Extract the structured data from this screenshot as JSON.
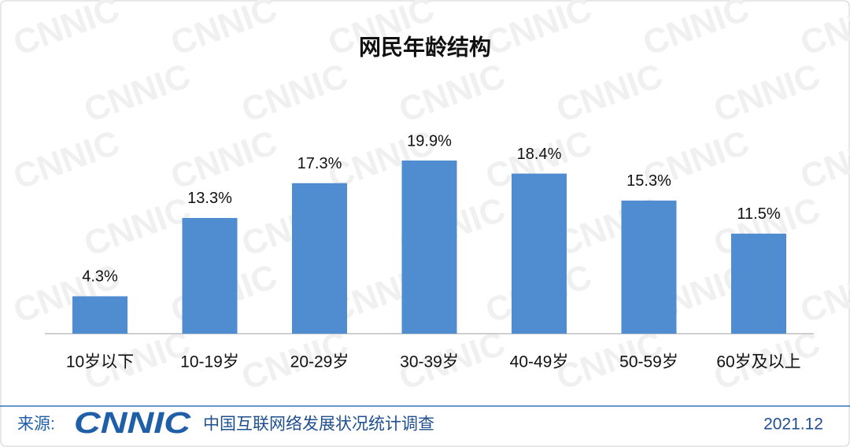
{
  "chart_data": {
    "type": "bar",
    "title": "网民年龄结构",
    "categories": [
      "10岁以下",
      "10-19岁",
      "20-29岁",
      "30-39岁",
      "40-49岁",
      "50-59岁",
      "60岁及以上"
    ],
    "values": [
      4.3,
      13.3,
      17.3,
      19.9,
      18.4,
      15.3,
      11.5
    ],
    "value_labels": [
      "4.3%",
      "13.3%",
      "17.3%",
      "19.9%",
      "18.4%",
      "15.3%",
      "11.5%"
    ],
    "color": "#4f8dd0"
  },
  "watermark": "CNNIC",
  "footer": {
    "source_label": "来源:",
    "logo": "CNNIC",
    "survey": "中国互联网络发展状况统计调查",
    "date": "2021.12"
  }
}
